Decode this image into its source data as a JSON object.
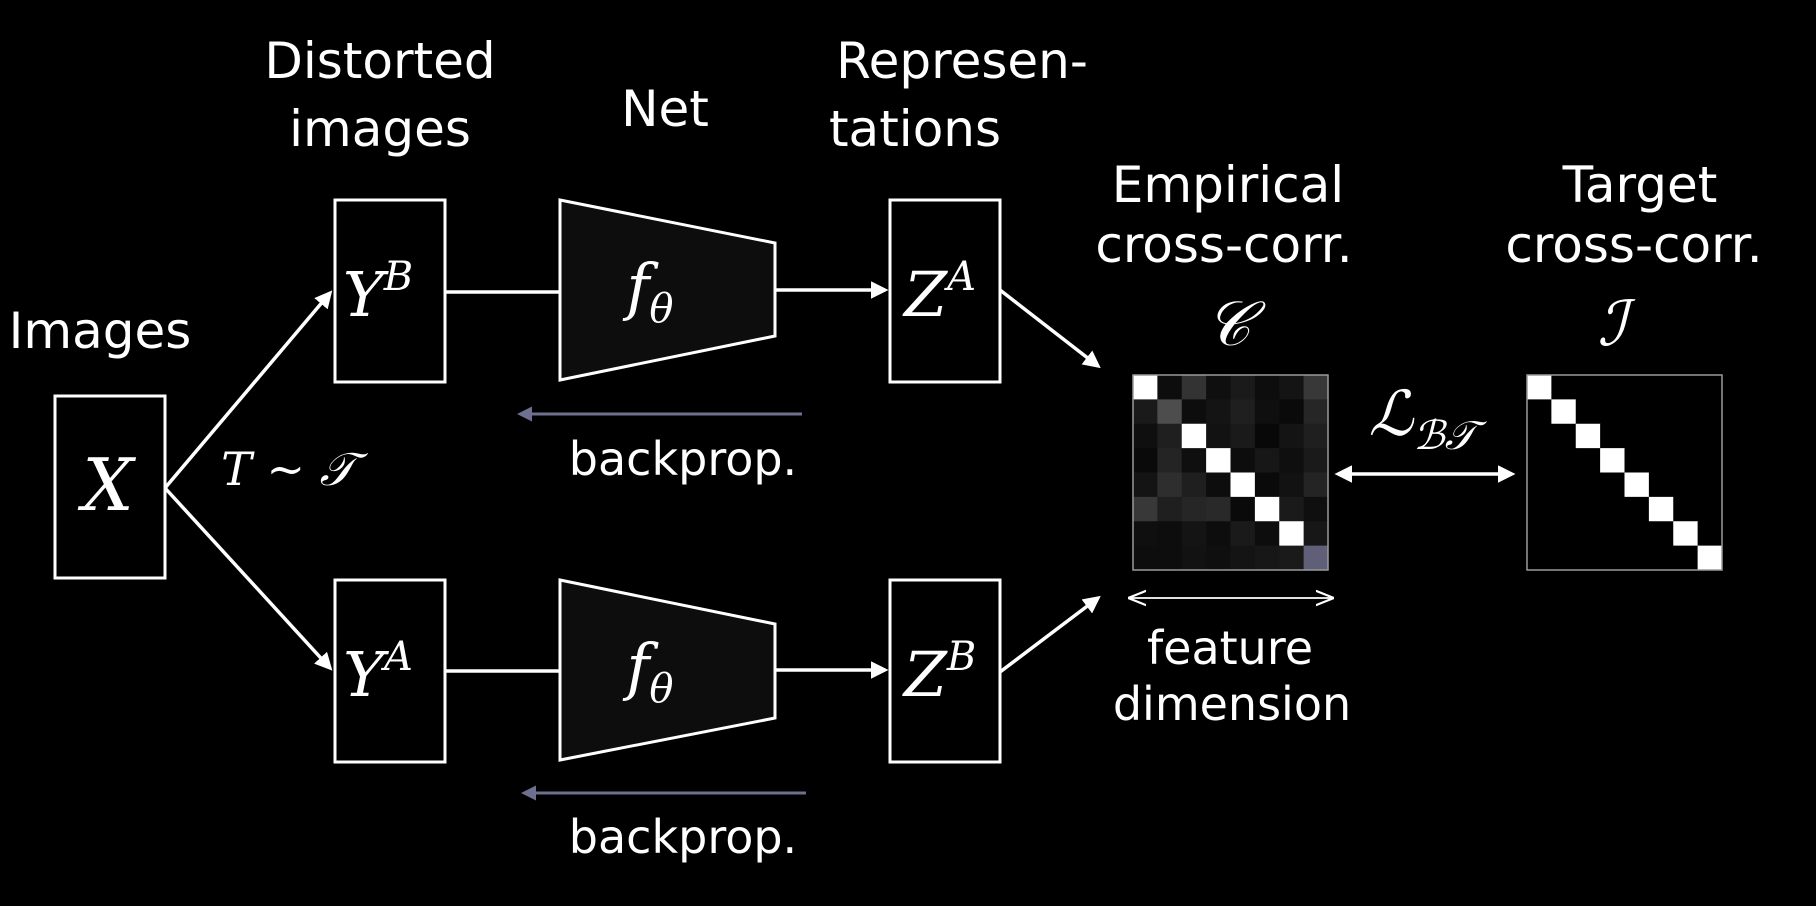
{
  "labels": {
    "images": "Images",
    "distorted_line1": "Distorted",
    "distorted_line2": "images",
    "net": "Net",
    "repr_line1": "Represen-",
    "repr_line2": "tations",
    "empirical_line1": "Empirical",
    "empirical_line2": "cross-corr.",
    "target_line1": "Target",
    "target_line2": "cross-corr.",
    "feature_line1": "feature",
    "feature_line2": "dimension",
    "backprop_top": "backprop.",
    "backprop_bottom": "backprop."
  },
  "math": {
    "x": "X",
    "t": "T ~ 𝒯",
    "yb_base": "Y",
    "yb_sup": "B",
    "ya_base": "Y",
    "ya_sup": "A",
    "f_top": "f",
    "f_top_sub": "θ",
    "f_bottom": "f",
    "f_bottom_sub": "θ",
    "za_base": "Z",
    "za_sup": "A",
    "zb_base": "Z",
    "zb_sup": "B",
    "c": "𝒞",
    "i": "ℐ",
    "loss_base": "ℒ",
    "loss_sub": "ℬ𝒯"
  },
  "colors": {
    "background": "#000000",
    "foreground": "#ffffff",
    "backprop_arrow": "#6f6f8f",
    "diag": "#ffffff"
  },
  "empirical_matrix": {
    "size": 8,
    "values": [
      [
        1.0,
        0.05,
        0.2,
        0.06,
        0.1,
        0.05,
        0.08,
        0.22
      ],
      [
        0.1,
        0.3,
        0.05,
        0.08,
        0.12,
        0.06,
        0.04,
        0.15
      ],
      [
        0.06,
        0.12,
        1.0,
        0.07,
        0.1,
        0.03,
        0.08,
        0.12
      ],
      [
        0.04,
        0.14,
        0.06,
        1.0,
        0.05,
        0.09,
        0.06,
        0.1
      ],
      [
        0.08,
        0.18,
        0.12,
        0.05,
        1.0,
        0.04,
        0.07,
        0.14
      ],
      [
        0.22,
        0.12,
        0.15,
        0.16,
        0.04,
        1.0,
        0.1,
        0.06
      ],
      [
        0.06,
        0.05,
        0.08,
        0.05,
        0.1,
        0.05,
        1.0,
        0.09
      ],
      [
        0.05,
        0.05,
        0.07,
        0.06,
        0.08,
        0.09,
        0.1,
        0.45
      ]
    ]
  },
  "target_matrix": {
    "size": 8
  }
}
